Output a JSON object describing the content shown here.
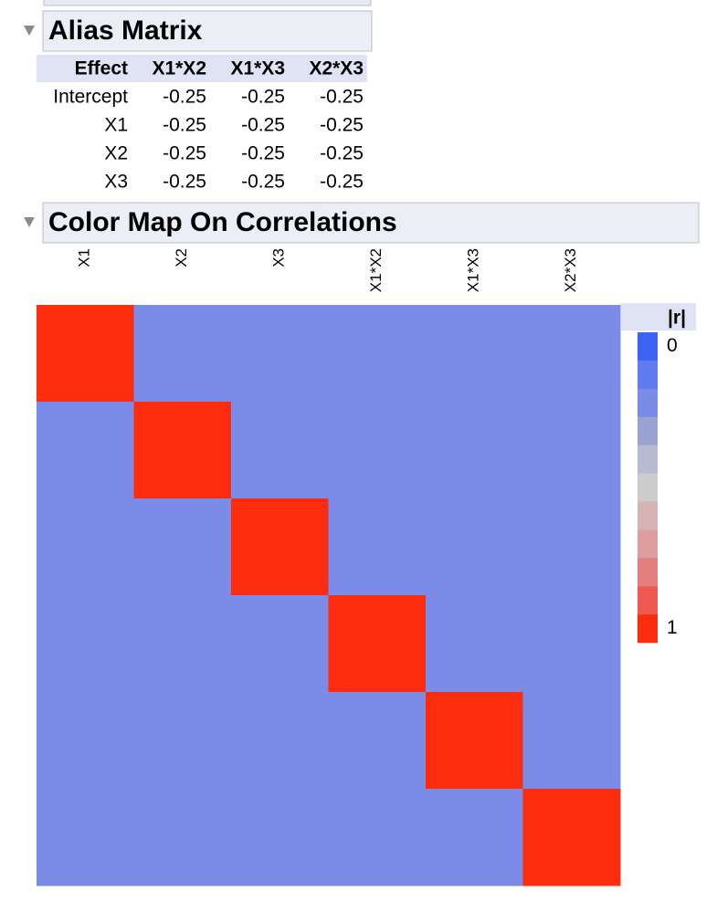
{
  "alias_matrix": {
    "title": "Alias Matrix",
    "header": [
      "Effect",
      "X1*X2",
      "X1*X3",
      "X2*X3"
    ],
    "rows": [
      [
        "Intercept",
        -0.25,
        -0.25,
        -0.25
      ],
      [
        "X1",
        -0.25,
        -0.25,
        -0.25
      ],
      [
        "X2",
        -0.25,
        -0.25,
        -0.25
      ],
      [
        "X3",
        -0.25,
        -0.25,
        -0.25
      ]
    ]
  },
  "color_map": {
    "title": "Color Map On Correlations",
    "columns": [
      "X1",
      "X2",
      "X3",
      "X1*X2",
      "X1*X3",
      "X2*X3"
    ],
    "values": [
      [
        1,
        0.2,
        0.2,
        0.2,
        0.2,
        0.2
      ],
      [
        0.2,
        1,
        0.2,
        0.2,
        0.2,
        0.2
      ],
      [
        0.2,
        0.2,
        1,
        0.2,
        0.2,
        0.2
      ],
      [
        0.2,
        0.2,
        0.2,
        1,
        0.2,
        0.2
      ],
      [
        0.2,
        0.2,
        0.2,
        0.2,
        1,
        0.2
      ],
      [
        0.2,
        0.2,
        0.2,
        0.2,
        0.2,
        1
      ]
    ],
    "legend": {
      "title": "|r|",
      "range": [
        0,
        1
      ],
      "ticks": [
        0,
        1
      ],
      "colors": [
        "#3d63f5",
        "#5e7bef",
        "#7b8be8",
        "#9aa3d2",
        "#b7bad0",
        "#cccccc",
        "#d6b4b4",
        "#dc9e9e",
        "#e47f7f",
        "#ee5a4f",
        "#fb2d0e"
      ]
    }
  }
}
